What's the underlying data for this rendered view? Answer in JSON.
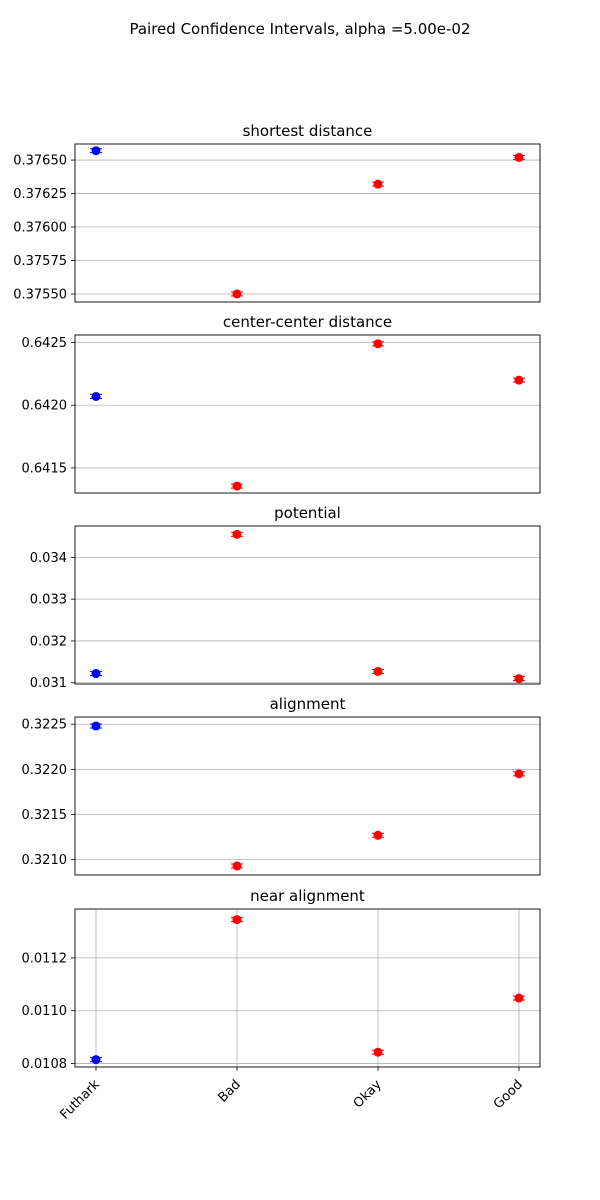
{
  "figure": {
    "title": "Paired Confidence Intervals, alpha =5.00e-02"
  },
  "chart_data": [
    {
      "type": "scatter",
      "title": "shortest distance",
      "categories": [
        "Futhark",
        "Bad",
        "Okay",
        "Good"
      ],
      "values": [
        0.37657,
        0.3755,
        0.37632,
        0.37652
      ],
      "point_colors": [
        "#0000ff",
        "#ff0000",
        "#ff0000",
        "#ff0000"
      ],
      "ylim": [
        0.37544,
        0.37662
      ],
      "yticks": [
        0.3755,
        0.37575,
        0.376,
        0.37625,
        0.3765
      ],
      "ytick_labels": [
        "0.37550",
        "0.37575",
        "0.37600",
        "0.37625",
        "0.37650"
      ],
      "grid": "y",
      "xticks_shown": false
    },
    {
      "type": "scatter",
      "title": "center-center distance",
      "categories": [
        "Futhark",
        "Bad",
        "Okay",
        "Good"
      ],
      "values": [
        0.64207,
        0.641355,
        0.64249,
        0.6422
      ],
      "point_colors": [
        "#0000ff",
        "#ff0000",
        "#ff0000",
        "#ff0000"
      ],
      "ylim": [
        0.6413,
        0.64256
      ],
      "yticks": [
        0.6415,
        0.642,
        0.6425
      ],
      "ytick_labels": [
        "0.6415",
        "0.6420",
        "0.6425"
      ],
      "grid": "y",
      "xticks_shown": false
    },
    {
      "type": "scatter",
      "title": "potential",
      "categories": [
        "Futhark",
        "Bad",
        "Okay",
        "Good"
      ],
      "values": [
        0.03122,
        0.03455,
        0.03127,
        0.0311
      ],
      "point_colors": [
        "#0000ff",
        "#ff0000",
        "#ff0000",
        "#ff0000"
      ],
      "ylim": [
        0.03097,
        0.03475
      ],
      "yticks": [
        0.031,
        0.032,
        0.033,
        0.034
      ],
      "ytick_labels": [
        "0.031",
        "0.032",
        "0.033",
        "0.034"
      ],
      "grid": "y",
      "xticks_shown": false
    },
    {
      "type": "scatter",
      "title": "alignment",
      "categories": [
        "Futhark",
        "Bad",
        "Okay",
        "Good"
      ],
      "values": [
        0.32248,
        0.32093,
        0.32127,
        0.32195
      ],
      "point_colors": [
        "#0000ff",
        "#ff0000",
        "#ff0000",
        "#ff0000"
      ],
      "ylim": [
        0.32083,
        0.32258
      ],
      "yticks": [
        0.321,
        0.3215,
        0.322,
        0.3225
      ],
      "ytick_labels": [
        "0.3210",
        "0.3215",
        "0.3220",
        "0.3225"
      ],
      "grid": "y",
      "xticks_shown": false
    },
    {
      "type": "scatter",
      "title": "near alignment",
      "categories": [
        "Futhark",
        "Bad",
        "Okay",
        "Good"
      ],
      "values": [
        0.010815,
        0.011345,
        0.010843,
        0.011048
      ],
      "point_colors": [
        "#0000ff",
        "#ff0000",
        "#ff0000",
        "#ff0000"
      ],
      "ylim": [
        0.010787,
        0.011385
      ],
      "yticks": [
        0.0108,
        0.011,
        0.0112
      ],
      "ytick_labels": [
        "0.0108",
        "0.0110",
        "0.0112"
      ],
      "grid": "both",
      "xticks_shown": true
    }
  ]
}
